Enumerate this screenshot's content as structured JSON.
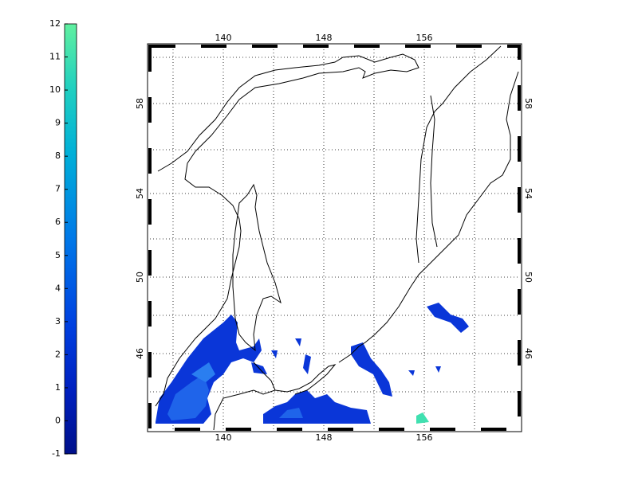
{
  "colorbar": {
    "ticks": [
      -1,
      0,
      1,
      2,
      3,
      4,
      5,
      6,
      7,
      8,
      9,
      10,
      11,
      12
    ]
  },
  "map": {
    "lon_ticks": [
      140,
      148,
      156
    ],
    "lat_ticks": [
      46,
      50,
      54,
      58
    ]
  }
}
